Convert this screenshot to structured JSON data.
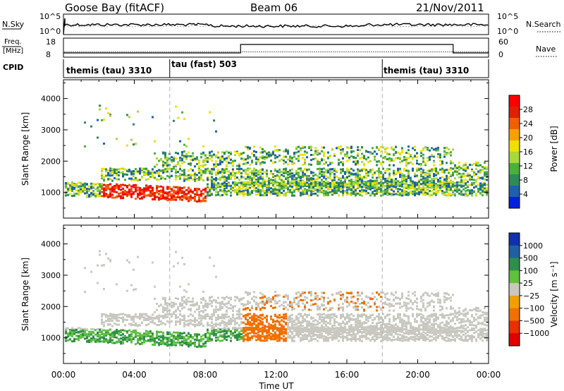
{
  "header": {
    "station": "Goose Bay (fitACF)",
    "beam": "Beam 06",
    "date": "21/Nov/2011"
  },
  "noise_panel": {
    "left_label": "N.Sky",
    "right_label": "N.Search",
    "left_ticks": [
      "10^5",
      "10^0"
    ],
    "right_ticks": [
      "10^5",
      "10^0"
    ]
  },
  "freq_panel": {
    "left_label_1": "Freq.",
    "left_label_2": "[MHz]",
    "right_label": "Nave",
    "left_ticks": [
      "18",
      "8"
    ],
    "right_ticks": [
      "60",
      "0"
    ]
  },
  "cpid_panel": {
    "label": "CPID",
    "segments": [
      {
        "name": "themis (tau) 3310",
        "start_hour": 0
      },
      {
        "name": "tau (fast) 503",
        "start_hour": 6
      },
      {
        "name": "themis (tau) 3310",
        "start_hour": 18
      }
    ]
  },
  "colors": {
    "power_scale": [
      "#0020e0",
      "#1f5fb0",
      "#2f8a5a",
      "#49b03a",
      "#a8d83a",
      "#f0e000",
      "#f8a000",
      "#f06000",
      "#e02000",
      "#ff0000"
    ],
    "velocity_scale": [
      "#1030b0",
      "#2060a0",
      "#2f8f4a",
      "#60c040",
      "#c8c8c0",
      "#f0a000",
      "#f07000",
      "#e83000",
      "#e00000"
    ]
  },
  "chart_data": [
    {
      "type": "heatmap",
      "title": "",
      "xlabel": "Time UT",
      "ylabel": "Slant Range [km]",
      "colorbar_label": "Power [dB]",
      "colorbar_ticks": [
        "28",
        "24",
        "20",
        "16",
        "12",
        "8",
        "4"
      ],
      "x_ticks": [
        "00:00",
        "04:00",
        "08:00",
        "12:00",
        "16:00",
        "20:00",
        "00:00"
      ],
      "y_ticks": [
        "1000",
        "2000",
        "3000",
        "4000"
      ],
      "xlim": [
        0,
        24
      ],
      "ylim": [
        180,
        4600
      ]
    },
    {
      "type": "heatmap",
      "title": "",
      "xlabel": "Time UT",
      "ylabel": "Slant Range [km]",
      "colorbar_label": "Velocity [m s⁻¹]",
      "colorbar_ticks": [
        "1000",
        "500",
        "100",
        "25",
        "−25",
        "−100",
        "−500",
        "−1000"
      ],
      "x_ticks": [
        "00:00",
        "04:00",
        "08:00",
        "12:00",
        "16:00",
        "20:00",
        "00:00"
      ],
      "y_ticks": [
        "1000",
        "2000",
        "3000",
        "4000"
      ],
      "xlim": [
        0,
        24
      ],
      "ylim": [
        180,
        4600
      ]
    }
  ]
}
